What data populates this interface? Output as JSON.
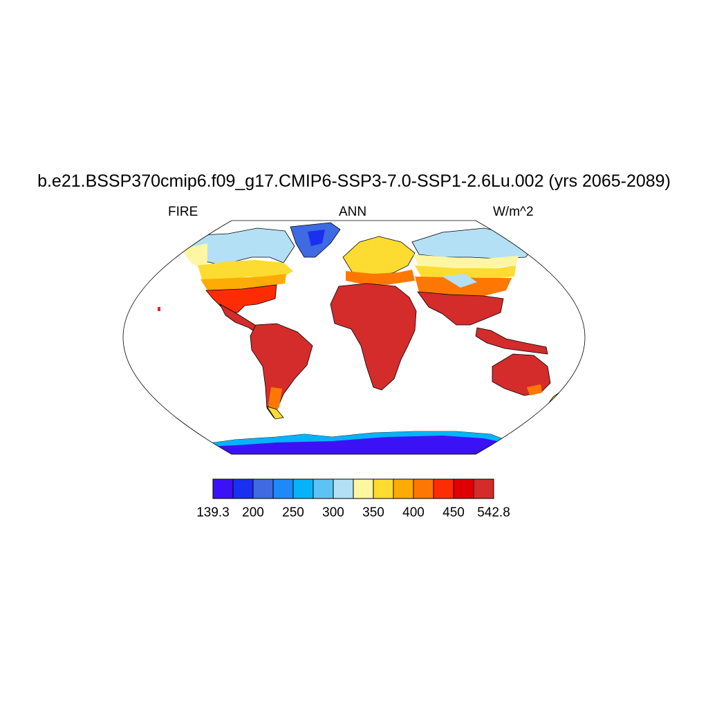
{
  "title": "b.e21.BSSP370cmip6.f09_g17.CMIP6-SSP3-7.0-SSP1-2.6Lu.002 (yrs 2065-2089)",
  "left_string": "FIRE",
  "center_string": "ANN",
  "right_string": "W/m^2",
  "colorbar": {
    "colors": [
      "#3b12f5",
      "#1a2ff0",
      "#3e6ae2",
      "#1e8af7",
      "#06b3f9",
      "#5cc3f4",
      "#b4e0f5",
      "#fef6a3",
      "#fddc31",
      "#fdab05",
      "#fd7803",
      "#fd2c05",
      "#df0006",
      "#d42b2b"
    ],
    "labels": [
      "139.3",
      "200",
      "250",
      "300",
      "350",
      "400",
      "450",
      "542.8"
    ]
  },
  "map": {
    "projection": "Robinson",
    "ocean_color": "#ffffff",
    "coastline_color": "#000000"
  }
}
